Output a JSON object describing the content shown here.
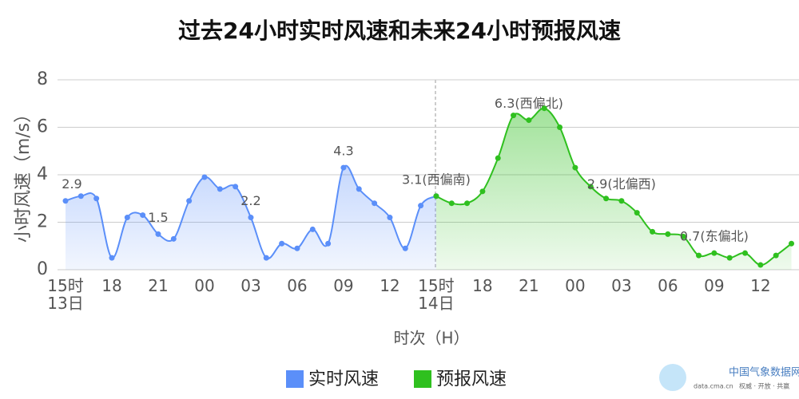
{
  "chart_data": {
    "type": "line",
    "title": "过去24小时实时风速和未来24小时预报风速",
    "y_label": "小时风速（m/s）",
    "x_label": "时次（H）",
    "categories": [
      "15时\n13日",
      null,
      null,
      "18",
      null,
      null,
      "21",
      null,
      null,
      "00",
      null,
      null,
      "03",
      null,
      null,
      "06",
      null,
      null,
      "09",
      null,
      null,
      "12",
      null,
      null,
      "15时\n14日",
      null,
      null,
      "18",
      null,
      null,
      "21",
      null,
      null,
      "00",
      null,
      null,
      "03",
      null,
      null,
      "06",
      null,
      null,
      "09",
      null,
      null,
      "12",
      null,
      null
    ],
    "series": [
      {
        "name": "实时风速",
        "color": "#5b8ff9",
        "values": [
          2.9,
          3.1,
          3.0,
          0.5,
          2.2,
          2.3,
          1.5,
          1.3,
          2.9,
          3.9,
          3.4,
          3.5,
          2.2,
          0.5,
          1.1,
          0.9,
          1.7,
          1.1,
          4.3,
          3.4,
          2.8,
          2.2,
          0.9,
          2.7,
          3.1,
          null,
          null,
          null,
          null,
          null,
          null,
          null,
          null,
          null,
          null,
          null,
          null,
          null,
          null,
          null,
          null,
          null,
          null,
          null,
          null,
          null,
          null,
          null
        ],
        "value_labels": [
          "2.9",
          null,
          null,
          null,
          null,
          null,
          "1.5",
          null,
          null,
          null,
          null,
          null,
          "2.2",
          null,
          null,
          null,
          null,
          null,
          "4.3",
          null,
          null,
          null,
          null,
          null,
          null,
          null,
          null,
          null,
          null,
          null,
          null,
          null,
          null,
          null,
          null,
          null,
          null,
          null,
          null,
          null,
          null,
          null,
          null,
          null,
          null,
          null,
          null,
          null
        ]
      },
      {
        "name": "预报风速",
        "color": "#2fc01f",
        "values": [
          null,
          null,
          null,
          null,
          null,
          null,
          null,
          null,
          null,
          null,
          null,
          null,
          null,
          null,
          null,
          null,
          null,
          null,
          null,
          null,
          null,
          null,
          null,
          null,
          3.1,
          2.8,
          2.8,
          3.3,
          4.7,
          6.5,
          6.3,
          6.8,
          6.0,
          4.3,
          3.5,
          3.0,
          2.9,
          2.4,
          1.6,
          1.5,
          1.4,
          0.6,
          0.7,
          0.5,
          0.7,
          0.2,
          0.6,
          1.1
        ],
        "value_labels": [
          null,
          null,
          null,
          null,
          null,
          null,
          null,
          null,
          null,
          null,
          null,
          null,
          null,
          null,
          null,
          null,
          null,
          null,
          null,
          null,
          null,
          null,
          null,
          null,
          "3.1(西偏南)",
          null,
          null,
          null,
          null,
          null,
          "6.3(西偏北)",
          null,
          null,
          null,
          null,
          null,
          "2.9(北偏西)",
          null,
          null,
          null,
          null,
          null,
          "0.7(东偏北)",
          null,
          null,
          null,
          null,
          null
        ]
      }
    ],
    "ylim": [
      0,
      8
    ],
    "yticks": [
      0,
      2,
      4,
      6,
      8
    ],
    "grid": true,
    "legend": "bottom"
  },
  "branding": {
    "name": "中国气象数据网",
    "url": "data.cma.cn",
    "slogan": "权威 · 开放 · 共赢"
  }
}
